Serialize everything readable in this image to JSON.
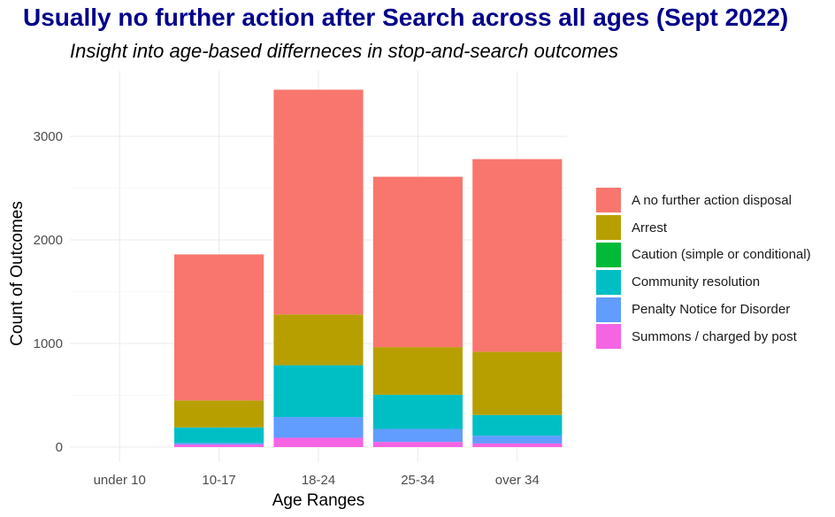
{
  "chart_data": {
    "type": "bar",
    "stacked": true,
    "title": "Usually no further action after Search across all ages (Sept 2022)",
    "subtitle": "Insight into age-based differneces in stop-and-search outcomes",
    "xlabel": "Age Ranges",
    "ylabel": "Count of Outcomes",
    "categories": [
      "under 10",
      "10-17",
      "18-24",
      "25-34",
      "over 34"
    ],
    "ylim": [
      0,
      3500
    ],
    "yticks": [
      0,
      1000,
      2000,
      3000
    ],
    "grid": true,
    "legend_position": "right",
    "series": [
      {
        "name": "Summons / charged by post",
        "color": "#F564E3",
        "values": [
          0,
          25,
          90,
          50,
          35
        ]
      },
      {
        "name": "Penalty Notice for Disorder",
        "color": "#619CFF",
        "values": [
          0,
          15,
          200,
          125,
          75
        ]
      },
      {
        "name": "Community resolution",
        "color": "#00BFC4",
        "values": [
          0,
          150,
          500,
          330,
          200
        ]
      },
      {
        "name": "Caution (simple or conditional)",
        "color": "#00BA38",
        "values": [
          0,
          0,
          0,
          0,
          0
        ]
      },
      {
        "name": "Arrest",
        "color": "#B79F00",
        "values": [
          0,
          260,
          490,
          460,
          610
        ]
      },
      {
        "name": "A no further action disposal",
        "color": "#F8766D",
        "values": [
          0,
          1410,
          2170,
          1645,
          1860
        ]
      }
    ],
    "legend_order": [
      "A no further action disposal",
      "Arrest",
      "Caution (simple or conditional)",
      "Community resolution",
      "Penalty Notice for Disorder",
      "Summons / charged by post"
    ]
  }
}
